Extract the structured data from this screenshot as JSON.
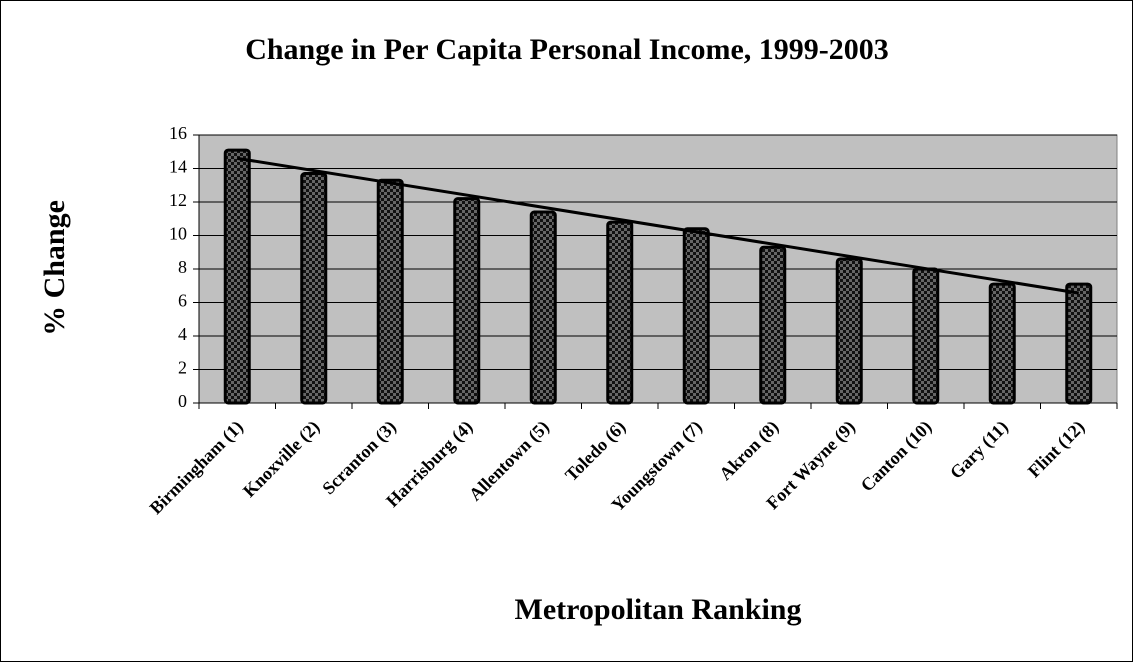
{
  "chart_data": {
    "type": "bar",
    "title": "Change in Per Capita Personal Income, 1999-2003",
    "x_label": "Metropolitan Ranking",
    "y_label": "% Change",
    "categories": [
      "Birmingham (1)",
      "Knoxville (2)",
      "Scranton (3)",
      "Harrisburg (4)",
      "Allentown (5)",
      "Toledo (6)",
      "Youngstown (7)",
      "Akron (8)",
      "Fort Wayne (9)",
      "Canton (10)",
      "Gary (11)",
      "Flint (12)"
    ],
    "values": [
      15.1,
      13.7,
      13.3,
      12.2,
      11.4,
      10.8,
      10.4,
      9.3,
      8.6,
      8.0,
      7.1,
      7.1
    ],
    "color": "#000000",
    "trendline": "linear",
    "ylim": [
      0,
      16
    ],
    "yticks": [
      0,
      2,
      4,
      6,
      8,
      10,
      12,
      14,
      16
    ],
    "grid": true
  }
}
